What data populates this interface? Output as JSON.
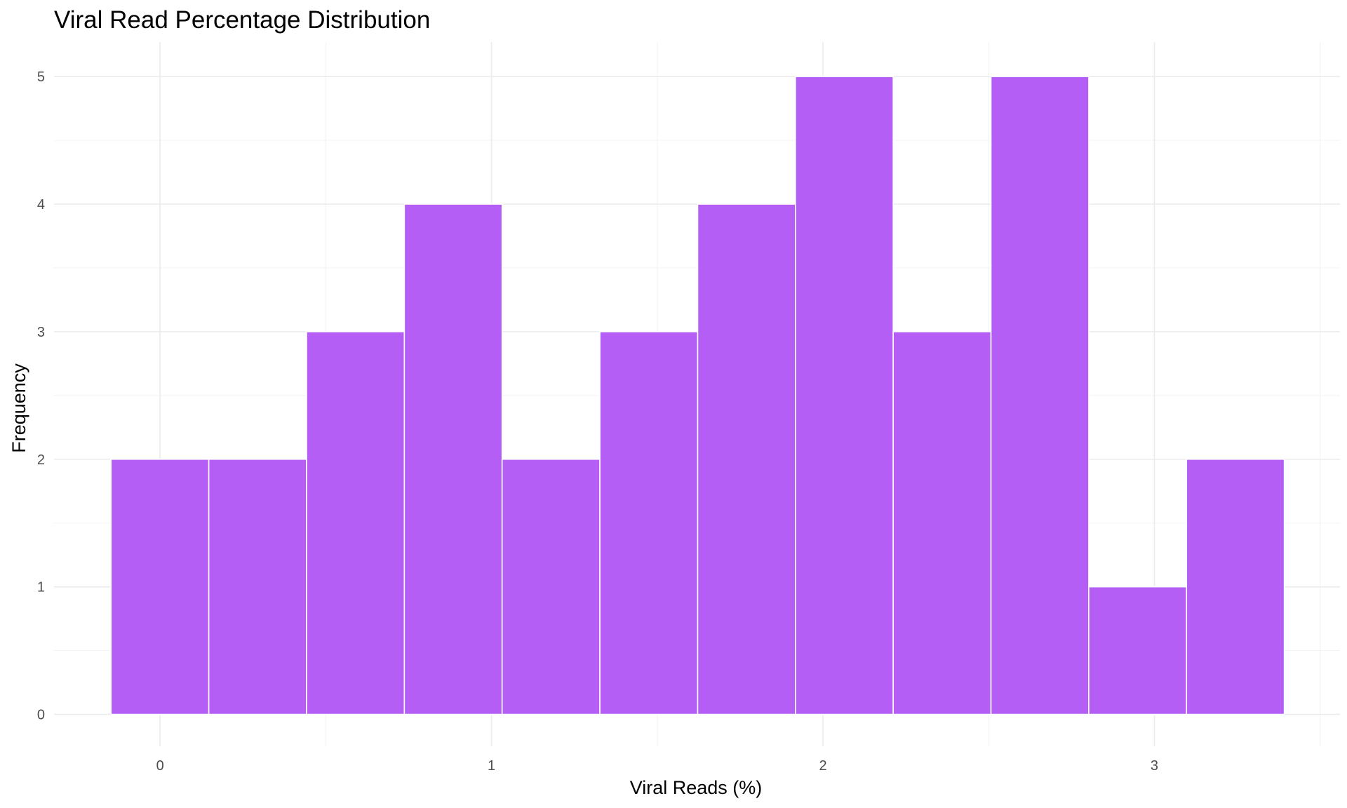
{
  "chart_data": {
    "type": "bar",
    "title": "Viral Read Percentage Distribution",
    "xlabel": "Viral Reads (%)",
    "ylabel": "Frequency",
    "bin_width": 0.295,
    "bins": [
      {
        "start": -0.148,
        "end": 0.147,
        "count": 2
      },
      {
        "start": 0.147,
        "end": 0.442,
        "count": 2
      },
      {
        "start": 0.442,
        "end": 0.737,
        "count": 3
      },
      {
        "start": 0.737,
        "end": 1.032,
        "count": 4
      },
      {
        "start": 1.032,
        "end": 1.327,
        "count": 2
      },
      {
        "start": 1.327,
        "end": 1.622,
        "count": 3
      },
      {
        "start": 1.622,
        "end": 1.917,
        "count": 4
      },
      {
        "start": 1.917,
        "end": 2.212,
        "count": 5
      },
      {
        "start": 2.212,
        "end": 2.507,
        "count": 3
      },
      {
        "start": 2.507,
        "end": 2.802,
        "count": 5
      },
      {
        "start": 2.802,
        "end": 3.097,
        "count": 1
      },
      {
        "start": 3.097,
        "end": 3.392,
        "count": 2
      }
    ],
    "xlim": [
      -0.32,
      3.56
    ],
    "ylim": [
      -0.25,
      5.27
    ],
    "x_ticks": [
      0,
      1,
      2,
      3
    ],
    "x_tick_labels": [
      "0",
      "1",
      "2",
      "3"
    ],
    "y_ticks": [
      0,
      1,
      2,
      3,
      4,
      5
    ],
    "y_tick_labels": [
      "0",
      "1",
      "2",
      "3",
      "4",
      "5"
    ],
    "x_minor_grid": [
      0.5,
      1.5,
      2.5,
      3.5
    ],
    "y_minor_grid": [
      0.5,
      1.5,
      2.5,
      3.5,
      4.5
    ],
    "grid": true,
    "legend": "none",
    "colors": {
      "bar_fill": "#b55ef5",
      "bar_stroke": "#ffffff",
      "grid_major": "#ebebeb",
      "grid_minor": "#f4f4f4",
      "tick_text": "#4d4d4d",
      "title_text": "#000000"
    }
  }
}
